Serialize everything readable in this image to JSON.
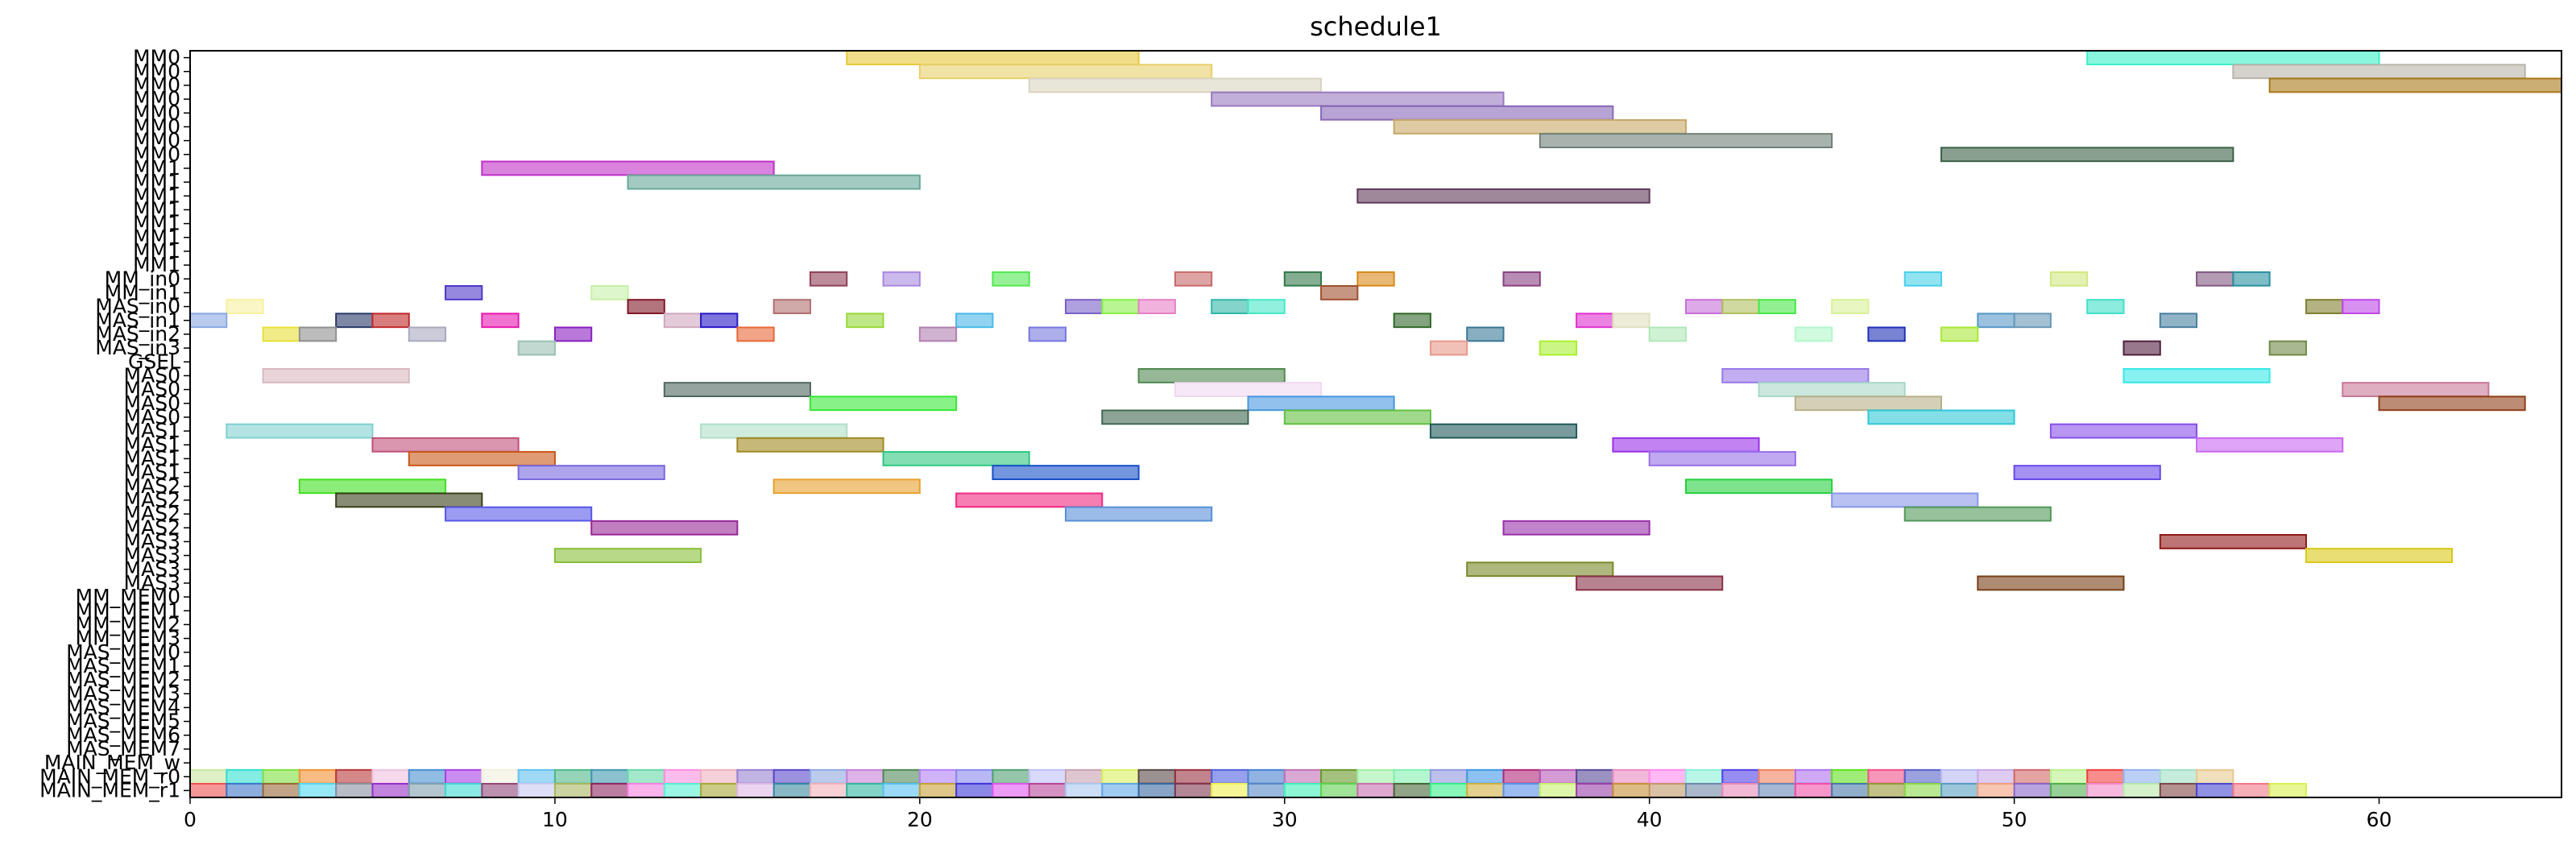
{
  "chart_data": {
    "type": "gantt",
    "title": "schedule1",
    "xlim": [
      0,
      65
    ],
    "xticks": [
      0,
      10,
      20,
      30,
      40,
      50,
      60
    ],
    "grid": false,
    "rows": [
      "MM0",
      "MM0",
      "MM0",
      "MM0",
      "MM0",
      "MM0",
      "MM0",
      "MM0",
      "MM1",
      "MM1",
      "MM1",
      "MM1",
      "MM1",
      "MM1",
      "MM1",
      "MM1",
      "MM_in0",
      "MM_in1",
      "MAS_in0",
      "MAS_in1",
      "MAS_in2",
      "MAS_in3",
      "GSEL",
      "MAS0",
      "MAS0",
      "MAS0",
      "MAS0",
      "MAS1",
      "MAS1",
      "MAS1",
      "MAS1",
      "MAS2",
      "MAS2",
      "MAS2",
      "MAS2",
      "MAS3",
      "MAS3",
      "MAS3",
      "MAS3",
      "MM_MEM0",
      "MM_MEM1",
      "MM_MEM2",
      "MM_MEM3",
      "MAS_MEM0",
      "MAS_MEM1",
      "MAS_MEM2",
      "MAS_MEM3",
      "MAS_MEM4",
      "MAS_MEM5",
      "MAS_MEM6",
      "MAS_MEM7",
      "MAIN_MEM_w",
      "MAIN_MEM_r0",
      "MAIN_MEM_r1"
    ],
    "tasks": [
      {
        "row": 0,
        "start": 18,
        "end": 26,
        "color": "#e8c83a"
      },
      {
        "row": 0,
        "start": 52,
        "end": 60,
        "color": "#3af0c8"
      },
      {
        "row": 1,
        "start": 20,
        "end": 28,
        "color": "#e8cf6a"
      },
      {
        "row": 1,
        "start": 56,
        "end": 64,
        "color": "#b8b4a8"
      },
      {
        "row": 2,
        "start": 23,
        "end": 31,
        "color": "#d8d4c0"
      },
      {
        "row": 2,
        "start": 57,
        "end": 65,
        "color": "#a87818"
      },
      {
        "row": 3,
        "start": 28,
        "end": 36,
        "color": "#9878c0"
      },
      {
        "row": 4,
        "start": 31,
        "end": 39,
        "color": "#8868b8"
      },
      {
        "row": 5,
        "start": 33,
        "end": 41,
        "color": "#c8a868"
      },
      {
        "row": 6,
        "start": 37,
        "end": 45,
        "color": "#708078"
      },
      {
        "row": 7,
        "start": 48,
        "end": 56,
        "color": "#3a6048"
      },
      {
        "row": 8,
        "start": 8,
        "end": 16,
        "color": "#c030c8"
      },
      {
        "row": 9,
        "start": 12,
        "end": 20,
        "color": "#68a898"
      },
      {
        "row": 10,
        "start": 32,
        "end": 40,
        "color": "#603858"
      },
      {
        "row": 16,
        "start": 17,
        "end": 18,
        "color": "#904058"
      },
      {
        "row": 16,
        "start": 19,
        "end": 20,
        "color": "#a888e0"
      },
      {
        "row": 16,
        "start": 22,
        "end": 23,
        "color": "#50e850"
      },
      {
        "row": 16,
        "start": 27,
        "end": 28,
        "color": "#c86868"
      },
      {
        "row": 16,
        "start": 30,
        "end": 31,
        "color": "#307848"
      },
      {
        "row": 16,
        "start": 32,
        "end": 33,
        "color": "#d88818"
      },
      {
        "row": 16,
        "start": 36,
        "end": 37,
        "color": "#884080"
      },
      {
        "row": 16,
        "start": 47,
        "end": 48,
        "color": "#48d0e8"
      },
      {
        "row": 16,
        "start": 51,
        "end": 52,
        "color": "#d0e880"
      },
      {
        "row": 16,
        "start": 55,
        "end": 56,
        "color": "#805880"
      },
      {
        "row": 16,
        "start": 56,
        "end": 57,
        "color": "#2890a0"
      },
      {
        "row": 17,
        "start": 7,
        "end": 8,
        "color": "#5038c8"
      },
      {
        "row": 17,
        "start": 11,
        "end": 12,
        "color": "#c8f0a8"
      },
      {
        "row": 17,
        "start": 31,
        "end": 32,
        "color": "#a05030"
      },
      {
        "row": 18,
        "start": 1,
        "end": 2,
        "color": "#f8f0a0"
      },
      {
        "row": 18,
        "start": 12,
        "end": 13,
        "color": "#801828"
      },
      {
        "row": 18,
        "start": 16,
        "end": 17,
        "color": "#b07070"
      },
      {
        "row": 18,
        "start": 24,
        "end": 25,
        "color": "#7860c8"
      },
      {
        "row": 18,
        "start": 25,
        "end": 26,
        "color": "#88f048"
      },
      {
        "row": 18,
        "start": 26,
        "end": 27,
        "color": "#e880c8"
      },
      {
        "row": 18,
        "start": 28,
        "end": 29,
        "color": "#30b8a8"
      },
      {
        "row": 18,
        "start": 29,
        "end": 30,
        "color": "#48e8c8"
      },
      {
        "row": 18,
        "start": 41,
        "end": 42,
        "color": "#c870d8"
      },
      {
        "row": 18,
        "start": 42,
        "end": 43,
        "color": "#b0c060"
      },
      {
        "row": 18,
        "start": 43,
        "end": 44,
        "color": "#48e848"
      },
      {
        "row": 18,
        "start": 45,
        "end": 46,
        "color": "#d8f098"
      },
      {
        "row": 18,
        "start": 52,
        "end": 53,
        "color": "#40e0c8"
      },
      {
        "row": 18,
        "start": 58,
        "end": 59,
        "color": "#808030"
      },
      {
        "row": 18,
        "start": 59,
        "end": 60,
        "color": "#c048e8"
      },
      {
        "row": 19,
        "start": 0,
        "end": 1,
        "color": "#88a8e0"
      },
      {
        "row": 19,
        "start": 4,
        "end": 5,
        "color": "#283868"
      },
      {
        "row": 19,
        "start": 5,
        "end": 6,
        "color": "#c02828"
      },
      {
        "row": 19,
        "start": 8,
        "end": 9,
        "color": "#e818b0"
      },
      {
        "row": 19,
        "start": 13,
        "end": 14,
        "color": "#d0a8c0"
      },
      {
        "row": 19,
        "start": 14,
        "end": 15,
        "color": "#2818c8"
      },
      {
        "row": 19,
        "start": 18,
        "end": 19,
        "color": "#98d838"
      },
      {
        "row": 19,
        "start": 21,
        "end": 22,
        "color": "#48b8e8"
      },
      {
        "row": 19,
        "start": 33,
        "end": 34,
        "color": "#306828"
      },
      {
        "row": 19,
        "start": 38,
        "end": 39,
        "color": "#e030d0"
      },
      {
        "row": 19,
        "start": 39,
        "end": 40,
        "color": "#e0e0c0"
      },
      {
        "row": 19,
        "start": 49,
        "end": 50,
        "color": "#5898c8"
      },
      {
        "row": 19,
        "start": 50,
        "end": 51,
        "color": "#6898b8"
      },
      {
        "row": 19,
        "start": 54,
        "end": 55,
        "color": "#4880a0"
      },
      {
        "row": 20,
        "start": 2,
        "end": 3,
        "color": "#e8e038"
      },
      {
        "row": 20,
        "start": 3,
        "end": 4,
        "color": "#909090"
      },
      {
        "row": 20,
        "start": 6,
        "end": 7,
        "color": "#a8a8c0"
      },
      {
        "row": 20,
        "start": 10,
        "end": 11,
        "color": "#8820c0"
      },
      {
        "row": 20,
        "start": 15,
        "end": 16,
        "color": "#e86838"
      },
      {
        "row": 20,
        "start": 20,
        "end": 21,
        "color": "#b080b0"
      },
      {
        "row": 20,
        "start": 23,
        "end": 24,
        "color": "#7878e0"
      },
      {
        "row": 20,
        "start": 35,
        "end": 36,
        "color": "#387898"
      },
      {
        "row": 20,
        "start": 40,
        "end": 41,
        "color": "#b0e8b8"
      },
      {
        "row": 20,
        "start": 44,
        "end": 45,
        "color": "#b0f8c8"
      },
      {
        "row": 20,
        "start": 46,
        "end": 47,
        "color": "#2030b8"
      },
      {
        "row": 20,
        "start": 48,
        "end": 49,
        "color": "#a8e838"
      },
      {
        "row": 21,
        "start": 9,
        "end": 10,
        "color": "#98c0b0"
      },
      {
        "row": 21,
        "start": 34,
        "end": 35,
        "color": "#e89888"
      },
      {
        "row": 21,
        "start": 37,
        "end": 38,
        "color": "#a8f030"
      },
      {
        "row": 21,
        "start": 53,
        "end": 54,
        "color": "#502040"
      },
      {
        "row": 21,
        "start": 57,
        "end": 58,
        "color": "#708848"
      },
      {
        "row": 23,
        "start": 2,
        "end": 6,
        "color": "#d8b8c0"
      },
      {
        "row": 23,
        "start": 26,
        "end": 30,
        "color": "#508850"
      },
      {
        "row": 23,
        "start": 42,
        "end": 46,
        "color": "#9878e8"
      },
      {
        "row": 23,
        "start": 53,
        "end": 57,
        "color": "#38e8e8"
      },
      {
        "row": 24,
        "start": 13,
        "end": 17,
        "color": "#506860"
      },
      {
        "row": 24,
        "start": 27,
        "end": 31,
        "color": "#f0d8f0"
      },
      {
        "row": 24,
        "start": 43,
        "end": 47,
        "color": "#a8d8c8"
      },
      {
        "row": 24,
        "start": 59,
        "end": 63,
        "color": "#c87898"
      },
      {
        "row": 25,
        "start": 17,
        "end": 21,
        "color": "#38e838"
      },
      {
        "row": 25,
        "start": 29,
        "end": 33,
        "color": "#4898e0"
      },
      {
        "row": 25,
        "start": 44,
        "end": 48,
        "color": "#b8b088"
      },
      {
        "row": 25,
        "start": 60,
        "end": 64,
        "color": "#904018"
      },
      {
        "row": 26,
        "start": 25,
        "end": 29,
        "color": "#406850"
      },
      {
        "row": 26,
        "start": 30,
        "end": 34,
        "color": "#60c040"
      },
      {
        "row": 26,
        "start": 46,
        "end": 50,
        "color": "#30c8d8"
      },
      {
        "row": 27,
        "start": 1,
        "end": 5,
        "color": "#80d0d0"
      },
      {
        "row": 27,
        "start": 14,
        "end": 18,
        "color": "#b0e0c8"
      },
      {
        "row": 27,
        "start": 34,
        "end": 38,
        "color": "#205858"
      },
      {
        "row": 27,
        "start": 51,
        "end": 55,
        "color": "#8850e8"
      },
      {
        "row": 28,
        "start": 5,
        "end": 9,
        "color": "#c05078"
      },
      {
        "row": 28,
        "start": 15,
        "end": 19,
        "color": "#a08820"
      },
      {
        "row": 28,
        "start": 39,
        "end": 43,
        "color": "#9830e8"
      },
      {
        "row": 28,
        "start": 55,
        "end": 59,
        "color": "#c868f0"
      },
      {
        "row": 29,
        "start": 6,
        "end": 10,
        "color": "#c85818"
      },
      {
        "row": 29,
        "start": 19,
        "end": 23,
        "color": "#30c880"
      },
      {
        "row": 29,
        "start": 40,
        "end": 44,
        "color": "#9870e8"
      },
      {
        "row": 30,
        "start": 9,
        "end": 13,
        "color": "#7868e0"
      },
      {
        "row": 30,
        "start": 22,
        "end": 26,
        "color": "#1850c8"
      },
      {
        "row": 30,
        "start": 50,
        "end": 54,
        "color": "#6848e8"
      },
      {
        "row": 31,
        "start": 3,
        "end": 7,
        "color": "#40e020"
      },
      {
        "row": 31,
        "start": 16,
        "end": 20,
        "color": "#e8a030"
      },
      {
        "row": 31,
        "start": 41,
        "end": 45,
        "color": "#28d040"
      },
      {
        "row": 32,
        "start": 4,
        "end": 8,
        "color": "#384018"
      },
      {
        "row": 32,
        "start": 21,
        "end": 25,
        "color": "#f02880"
      },
      {
        "row": 32,
        "start": 45,
        "end": 49,
        "color": "#8898e8"
      },
      {
        "row": 33,
        "start": 7,
        "end": 11,
        "color": "#5858e8"
      },
      {
        "row": 33,
        "start": 24,
        "end": 28,
        "color": "#5890d8"
      },
      {
        "row": 33,
        "start": 47,
        "end": 51,
        "color": "#509858"
      },
      {
        "row": 34,
        "start": 11,
        "end": 15,
        "color": "#982898"
      },
      {
        "row": 34,
        "start": 36,
        "end": 40,
        "color": "#9830a8"
      },
      {
        "row": 35,
        "start": 54,
        "end": 58,
        "color": "#901818"
      },
      {
        "row": 36,
        "start": 10,
        "end": 14,
        "color": "#88c038"
      },
      {
        "row": 36,
        "start": 58,
        "end": 62,
        "color": "#d8c818"
      },
      {
        "row": 37,
        "start": 35,
        "end": 39,
        "color": "#788828"
      },
      {
        "row": 38,
        "start": 38,
        "end": 42,
        "color": "#883048"
      },
      {
        "row": 38,
        "start": 49,
        "end": 53,
        "color": "#784018"
      }
    ],
    "mem_rows": [
      {
        "row": 52,
        "colors": [
          "#c8e8a0",
          "#30e0d0",
          "#80e040",
          "#f09030",
          "#b83838",
          "#f0c0e0",
          "#4890d0",
          "#a840e8",
          "#f0f0e0",
          "#60c0f0",
          "#50b888",
          "#4098b0",
          "#68d8a8",
          "#f890e0",
          "#f0b0c0",
          "#9880d0",
          "#5848c8",
          "#90a8e0",
          "#c880d8",
          "#508858",
          "#b080f8",
          "#8888f0",
          "#50a070",
          "#c0c0f8",
          "#c8a0b0",
          "#d8f060",
          "#584848",
          "#983040",
          "#5060e0",
          "#4880d0",
          "#c070b8",
          "#689828",
          "#a0f0a8",
          "#80f0b0",
          "#9098e0",
          "#4098e8",
          "#b02878",
          "#b858b8",
          "#584898",
          "#e888c0",
          "#ff88f0",
          "#88f0d8",
          "#5040e8",
          "#f08060",
          "#b070f0",
          "#60e020",
          "#f05088",
          "#5860c8",
          "#b8b8f0",
          "#c8a8e8",
          "#d06868",
          "#b8f088",
          "#f04040",
          "#90b0f0",
          "#a0e0c8",
          "#e8c890"
        ]
      },
      {
        "row": 53,
        "colors": [
          "#f05050",
          "#4078c8",
          "#986838",
          "#50d8f0",
          "#8890a0",
          "#9830c8",
          "#80a0b0",
          "#40d8d0",
          "#904878",
          "#c8c8f0",
          "#a8b860",
          "#902860",
          "#f880e0",
          "#58f0d0",
          "#a8a838",
          "#e0b8e8",
          "#3888a0",
          "#f0b0b8",
          "#30b8a0",
          "#58c0f0",
          "#c8a038",
          "#4038d8",
          "#e058f0",
          "#b84898",
          "#a8c8f0",
          "#60a8e8",
          "#3868a0",
          "#803850",
          "#f0f050",
          "#5888c8",
          "#40f0b8",
          "#60d050",
          "#c870b0",
          "#486838",
          "#38f088",
          "#d0b040",
          "#5890e8",
          "#c8f070",
          "#9840a8",
          "#c89038",
          "#c09868",
          "#7088a8",
          "#e888b8",
          "#6888b8",
          "#f050a8",
          "#4878a8",
          "#989838",
          "#88d848",
          "#58a0c0",
          "#f0a080",
          "#8868c8",
          "#50b050",
          "#f088c8",
          "#b8e8a8",
          "#804848",
          "#4848d0",
          "#f07888",
          "#d8f050"
        ]
      }
    ]
  }
}
